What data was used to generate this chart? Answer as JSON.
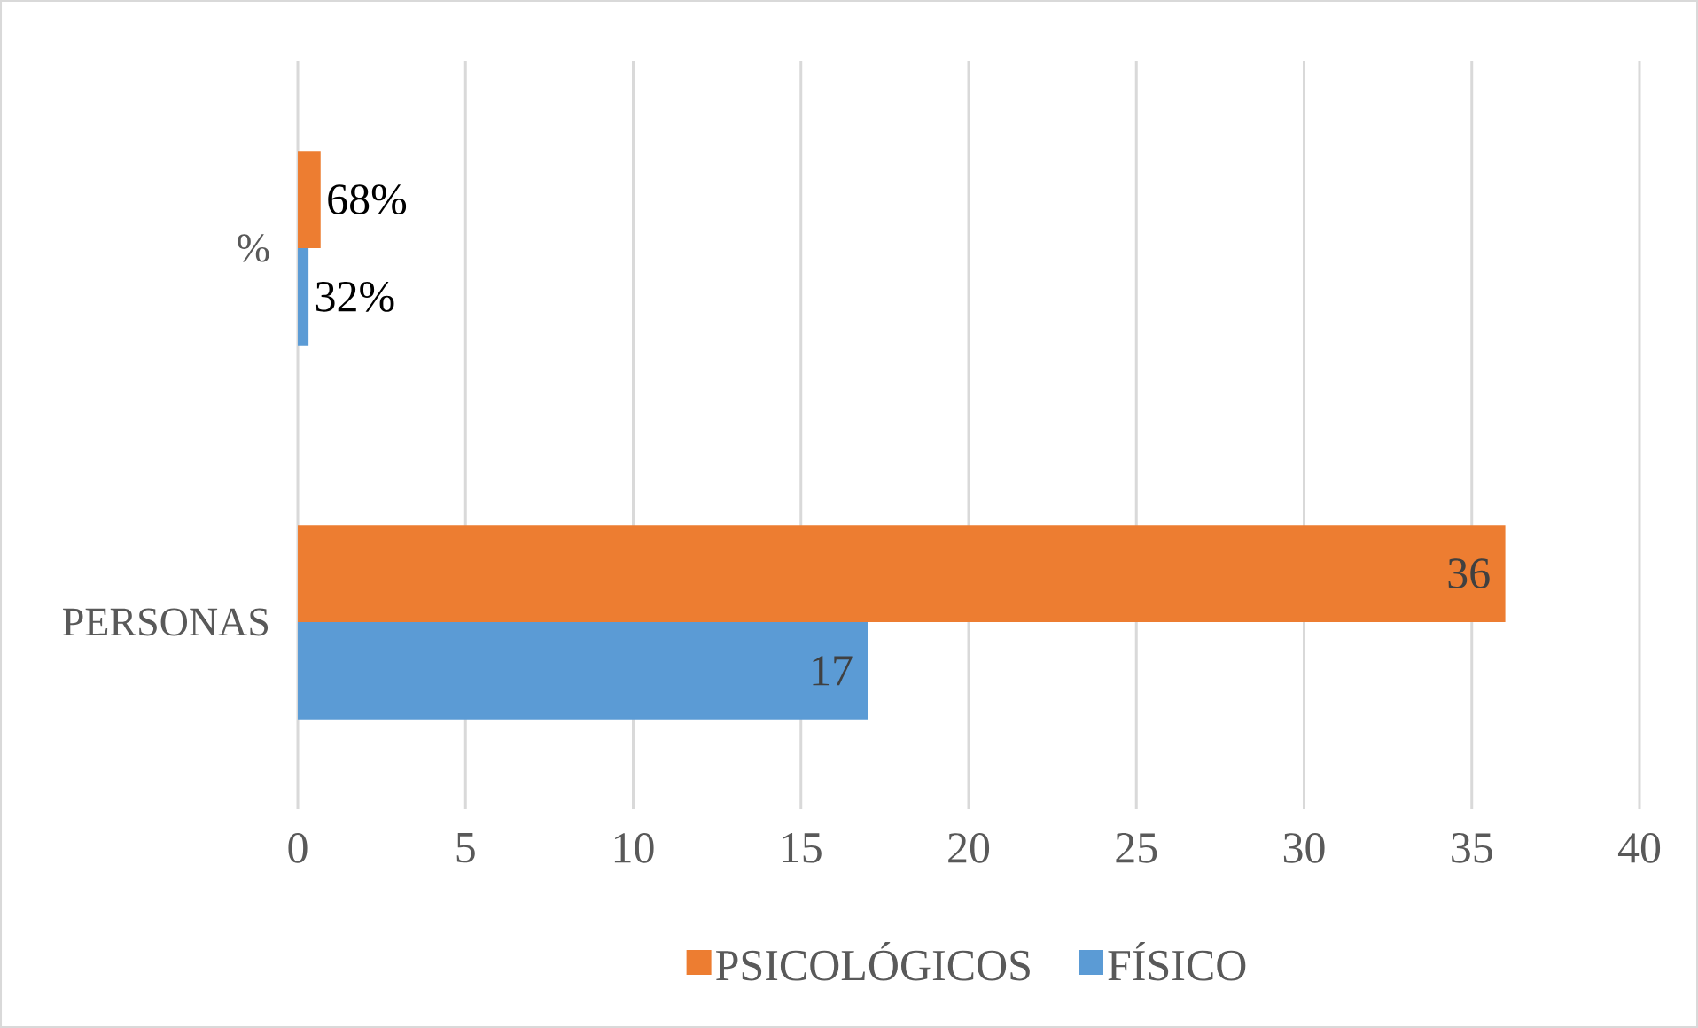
{
  "chart_data": {
    "type": "bar",
    "orientation": "horizontal",
    "categories": [
      "%",
      "PERSONAS"
    ],
    "series": [
      {
        "name": "PSICOLÓGICOS",
        "color": "#ed7d31",
        "values": [
          0.68,
          36
        ],
        "value_labels": [
          "68%",
          "36"
        ]
      },
      {
        "name": "FÍSICO",
        "color": "#5b9bd5",
        "values": [
          0.32,
          17
        ],
        "value_labels": [
          "32%",
          "17"
        ]
      }
    ],
    "xlim": [
      0,
      40
    ],
    "xticks": [
      0,
      5,
      10,
      15,
      20,
      25,
      30,
      35,
      40
    ],
    "grid": "x",
    "legend": "bottom"
  }
}
